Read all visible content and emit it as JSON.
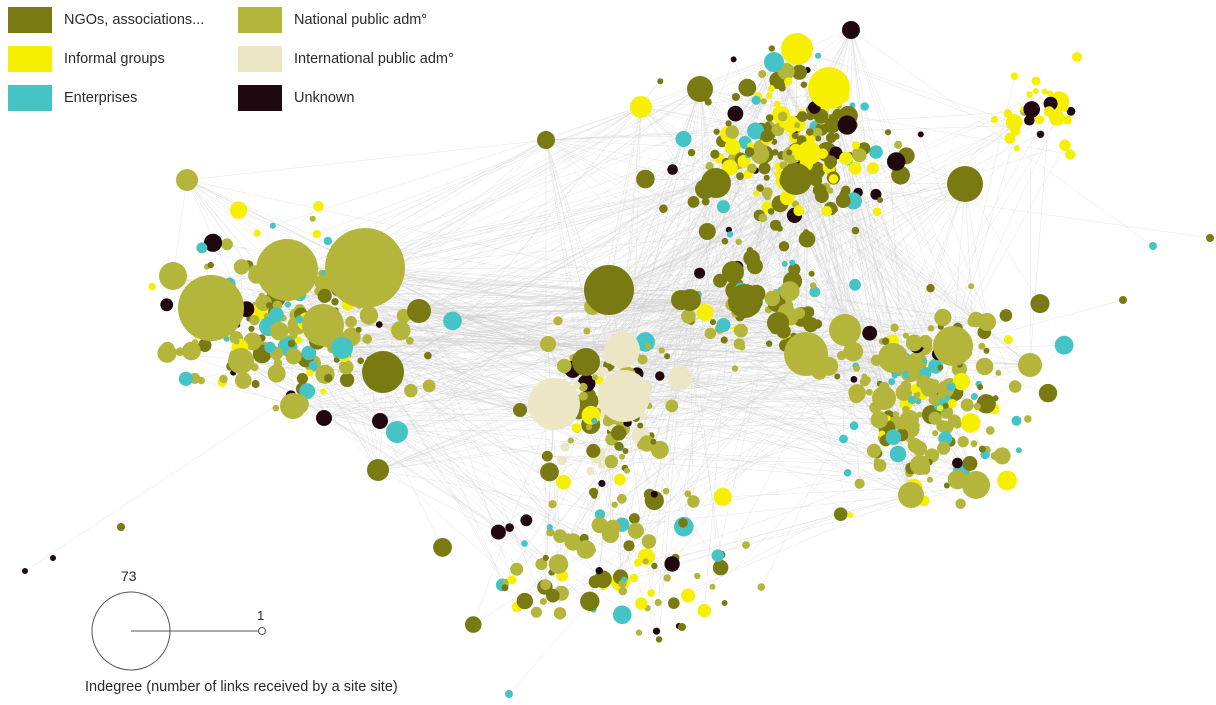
{
  "legend": {
    "items": [
      {
        "key": "ngo",
        "label": "NGOs, associations...",
        "color": "#7a7a12"
      },
      {
        "key": "informal",
        "label": "Informal groups",
        "color": "#f6ef00"
      },
      {
        "key": "enterprise",
        "label": "Enterprises",
        "color": "#45c4c6"
      },
      {
        "key": "national",
        "label": "National public adm°",
        "color": "#b4b53b"
      },
      {
        "key": "international",
        "label": "International public adm°",
        "color": "#ece6c4"
      },
      {
        "key": "unknown",
        "label": "Unknown",
        "color": "#1f0810"
      }
    ]
  },
  "size_scale": {
    "max_label": "73",
    "min_label": "1",
    "caption": "Indegree (number of links received by a site site)"
  },
  "colors": {
    "edge": "#cfcfcf",
    "scale_stroke": "#555555"
  }
}
